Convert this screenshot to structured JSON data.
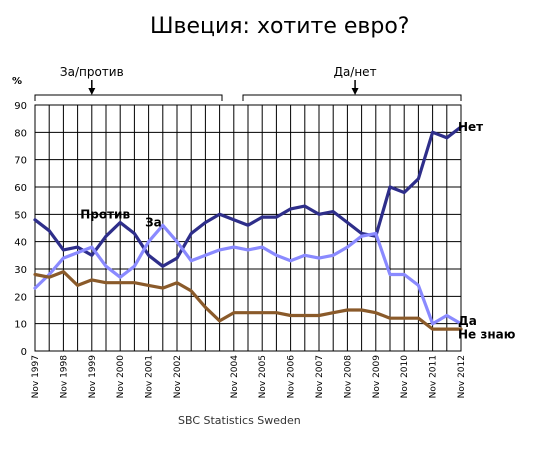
{
  "chart_data": {
    "type": "line",
    "title": "Швеция: хотите евро?",
    "ylabel": "%",
    "ylim": [
      0,
      90
    ],
    "yticks": [
      0,
      10,
      20,
      30,
      40,
      50,
      60,
      70,
      80,
      90
    ],
    "grid": true,
    "x": [
      1997.83,
      1998.33,
      1998.83,
      1999.33,
      1999.83,
      2000.33,
      2000.83,
      2001.33,
      2001.83,
      2002.33,
      2002.83,
      2003.33,
      2003.83,
      2004.33,
      2004.83,
      2005.33,
      2005.83,
      2006.33,
      2006.83,
      2007.33,
      2007.83,
      2008.33,
      2008.83,
      2009.33,
      2009.83,
      2010.33,
      2010.83,
      2011.33,
      2011.83,
      2012.33,
      2012.83
    ],
    "xticks": [
      {
        "x": 1997.83,
        "label": "Nov 1997"
      },
      {
        "x": 1998.83,
        "label": "Nov 1998"
      },
      {
        "x": 1999.83,
        "label": "Nov 1999"
      },
      {
        "x": 2000.83,
        "label": "Nov 2000"
      },
      {
        "x": 2001.83,
        "label": "Nov 2001"
      },
      {
        "x": 2002.83,
        "label": "Nov 2002"
      },
      {
        "x": 2004.83,
        "label": "Nov 2004"
      },
      {
        "x": 2005.83,
        "label": "Nov 2005"
      },
      {
        "x": 2006.83,
        "label": "Nov 2006"
      },
      {
        "x": 2007.83,
        "label": "Nov 2007"
      },
      {
        "x": 2008.83,
        "label": "Nov 2008"
      },
      {
        "x": 2009.83,
        "label": "Nov 2009"
      },
      {
        "x": 2010.83,
        "label": "Nov 2010"
      },
      {
        "x": 2011.83,
        "label": "Nov 2011"
      },
      {
        "x": 2012.83,
        "label": "Nov 2012"
      }
    ],
    "series": [
      {
        "name": "Нет",
        "color": "#2e2e8a",
        "values": [
          48,
          44,
          37,
          38,
          35,
          42,
          47,
          43,
          35,
          31,
          34,
          43,
          47,
          50,
          48,
          46,
          49,
          49,
          52,
          53,
          50,
          51,
          47,
          43,
          42,
          60,
          58,
          63,
          80,
          78,
          82
        ]
      },
      {
        "name": "Да",
        "color": "#8a8aff",
        "values": [
          23,
          28,
          34,
          36,
          38,
          31,
          27,
          31,
          40,
          46,
          40,
          33,
          35,
          37,
          38,
          37,
          38,
          35,
          33,
          35,
          34,
          35,
          38,
          42,
          43,
          28,
          28,
          24,
          10,
          13,
          10
        ]
      },
      {
        "name": "Не знаю",
        "color": "#8a5a2a",
        "values": [
          28,
          27,
          29,
          24,
          26,
          25,
          25,
          25,
          24,
          23,
          25,
          22,
          16,
          11,
          14,
          14,
          14,
          14,
          13,
          13,
          13,
          14,
          15,
          15,
          14,
          12,
          12,
          12,
          8,
          8,
          8
        ]
      }
    ],
    "annotations": [
      {
        "text": "За/против",
        "x": 1999.83,
        "arrow": true
      },
      {
        "text": "Да/нет",
        "x": 2009.1,
        "arrow": true
      },
      {
        "text": "Против",
        "x": 2000.3,
        "y": 50
      },
      {
        "text": "За",
        "x": 2002.0,
        "y": 47
      }
    ],
    "series_labels": [
      {
        "text": "Нет",
        "y": 82
      },
      {
        "text": "Да",
        "y": 11
      },
      {
        "text": "Не знаю",
        "y": 6
      }
    ],
    "source": "SBC Statistics Sweden"
  }
}
